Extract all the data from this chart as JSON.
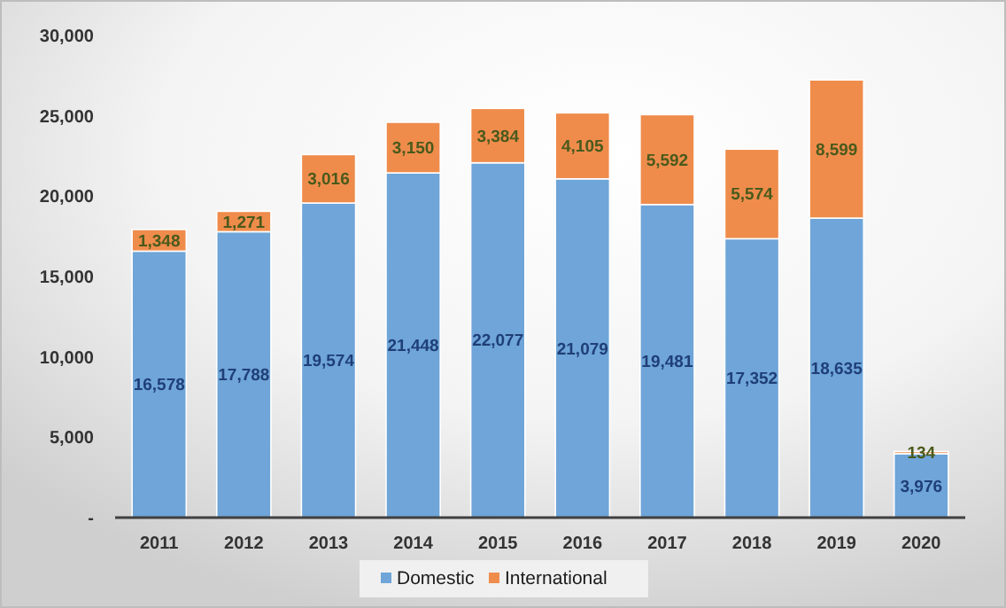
{
  "chart_data": {
    "type": "bar",
    "stacked": true,
    "categories": [
      "2011",
      "2012",
      "2013",
      "2014",
      "2015",
      "2016",
      "2017",
      "2018",
      "2019",
      "2020"
    ],
    "series": [
      {
        "name": "Domestic",
        "color": "#6fa5d8",
        "values": [
          16578,
          17788,
          19574,
          21448,
          22077,
          21079,
          19481,
          17352,
          18635,
          3976
        ],
        "value_labels": [
          "16,578",
          "17,788",
          "19,574",
          "21,448",
          "22,077",
          "21,079",
          "19,481",
          "17,352",
          "18,635",
          "3,976"
        ]
      },
      {
        "name": "International",
        "color": "#ef8c4c",
        "values": [
          1348,
          1271,
          3016,
          3150,
          3384,
          4105,
          5592,
          5574,
          8599,
          134
        ],
        "value_labels": [
          "1,348",
          "1,271",
          "3,016",
          "3,150",
          "3,384",
          "4,105",
          "5,592",
          "5,574",
          "8,599",
          "134"
        ]
      }
    ],
    "ylim": [
      0,
      30000
    ],
    "yticks": [
      {
        "value": 0,
        "label": "-"
      },
      {
        "value": 5000,
        "label": "5,000"
      },
      {
        "value": 10000,
        "label": "10,000"
      },
      {
        "value": 15000,
        "label": "15,000"
      },
      {
        "value": 20000,
        "label": "20,000"
      },
      {
        "value": 25000,
        "label": "25,000"
      },
      {
        "value": 30000,
        "label": "30,000"
      }
    ],
    "legend": "bottom"
  }
}
